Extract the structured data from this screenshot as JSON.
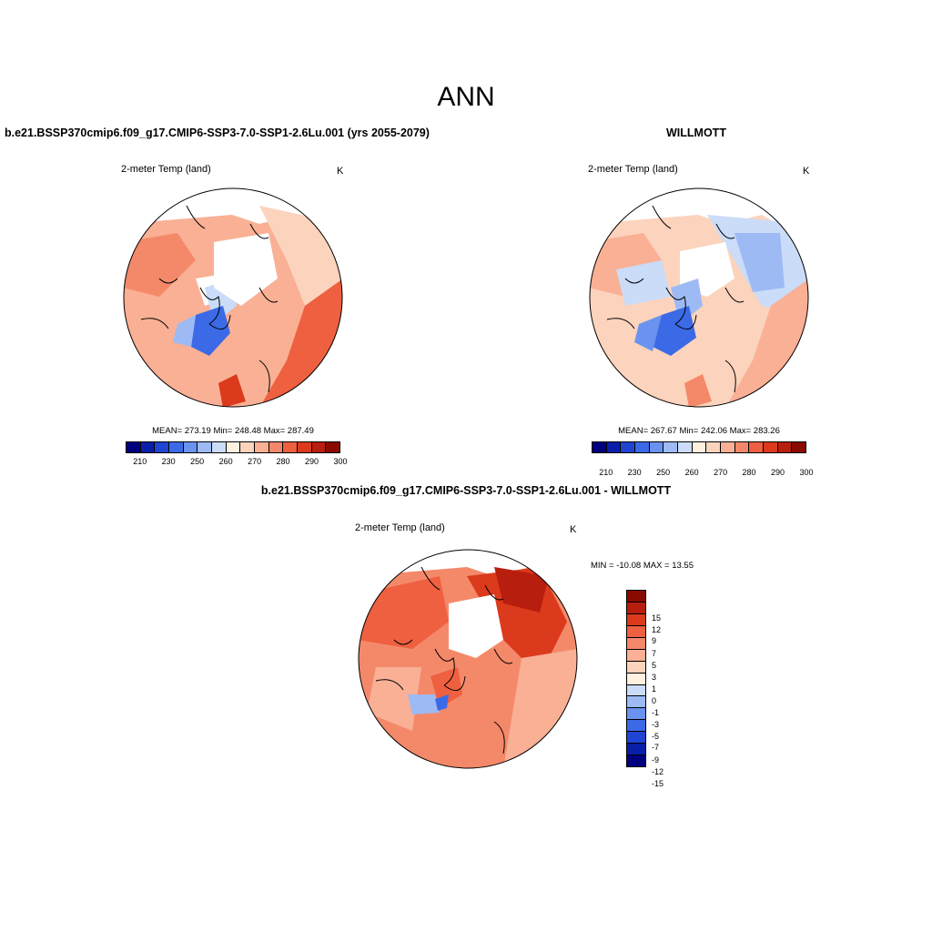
{
  "main_title": "ANN",
  "panels": [
    {
      "title": "b.e21.BSSP370cmip6.f09_g17.CMIP6-SSP3-7.0-SSP1-2.6Lu.001 (yrs 2055-2079)",
      "variable": "2-meter Temp (land)",
      "unit": "K",
      "stats": "MEAN= 273.19  Min= 248.48  Max= 287.49"
    },
    {
      "title": "WILLMOTT",
      "variable": "2-meter Temp (land)",
      "unit": "K",
      "stats": "MEAN= 267.67  Min= 242.06  Max= 283.26"
    },
    {
      "title": "b.e21.BSSP370cmip6.f09_g17.CMIP6-SSP3-7.0-SSP1-2.6Lu.001 - WILLMOTT",
      "variable": "2-meter Temp (land)",
      "unit": "K",
      "stats": "MIN = -10.08 MAX =  13.55"
    }
  ],
  "abs_colorbar": {
    "colors": [
      "#00007f",
      "#0a1fa8",
      "#1f45d2",
      "#3c6ae6",
      "#6a93f0",
      "#9dbaf5",
      "#cadcf8",
      "#fff0e0",
      "#fcd3bc",
      "#f9b094",
      "#f4896a",
      "#ee6040",
      "#dc3a1c",
      "#b81e0e",
      "#8a0a00"
    ],
    "tick_labels": [
      "210",
      "230",
      "250",
      "260",
      "270",
      "280",
      "290",
      "300"
    ]
  },
  "diff_colorbar": {
    "colors": [
      "#8a0a00",
      "#b81e0e",
      "#dc3a1c",
      "#ee6040",
      "#f4896a",
      "#f9b094",
      "#fcd3bc",
      "#fff0e0",
      "#cadcf8",
      "#9dbaf5",
      "#6a93f0",
      "#3c6ae6",
      "#1f45d2",
      "#0a1fa8",
      "#00007f"
    ],
    "tick_labels": [
      "15",
      "12",
      "9",
      "7",
      "5",
      "3",
      "1",
      "0",
      "-1",
      "-3",
      "-5",
      "-7",
      "-9",
      "-12",
      "-15"
    ]
  },
  "colors": {
    "warm_light": "#fcd3bc",
    "warm_mid": "#f4896a",
    "warm_strong": "#ee6040",
    "warm_dark": "#dc3a1c",
    "cool_light": "#cadcf8",
    "cool_mid": "#6a93f0",
    "cool_strong": "#3c6ae6"
  }
}
